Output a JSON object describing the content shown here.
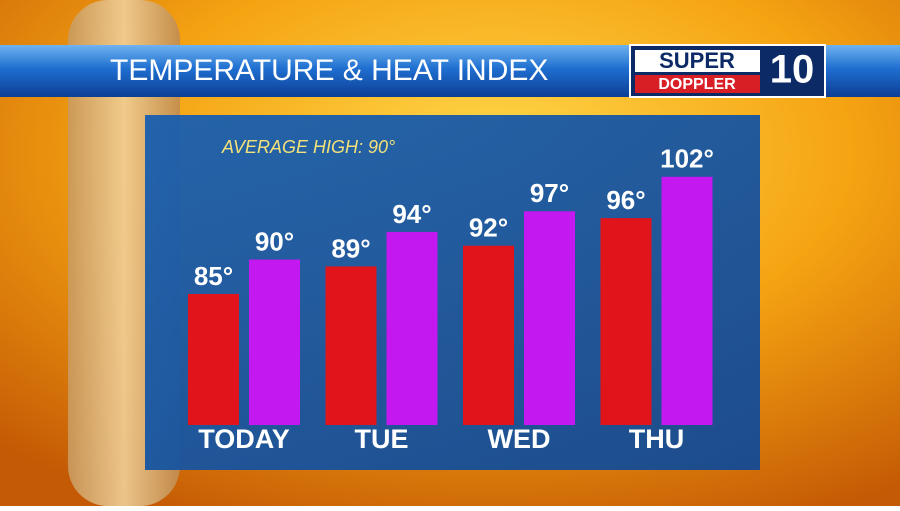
{
  "chart_data": {
    "type": "bar",
    "title": "TEMPERATURE & HEAT INDEX",
    "annotation": "AVERAGE HIGH: 90°",
    "logo": {
      "top": "SUPER",
      "bottom": "DOPPLER",
      "number": "10"
    },
    "categories": [
      "TODAY",
      "TUE",
      "WED",
      "THU"
    ],
    "series": [
      {
        "color": "#e0141a",
        "values": [
          85,
          89,
          92,
          96
        ],
        "value_labels": [
          "85°",
          "89°",
          "92°",
          "96°"
        ]
      },
      {
        "color": "#c318f0",
        "values": [
          90,
          94,
          97,
          102
        ],
        "value_labels": [
          "90°",
          "94°",
          "97°",
          "102°"
        ]
      }
    ],
    "ylim": [
      66,
      104
    ]
  }
}
